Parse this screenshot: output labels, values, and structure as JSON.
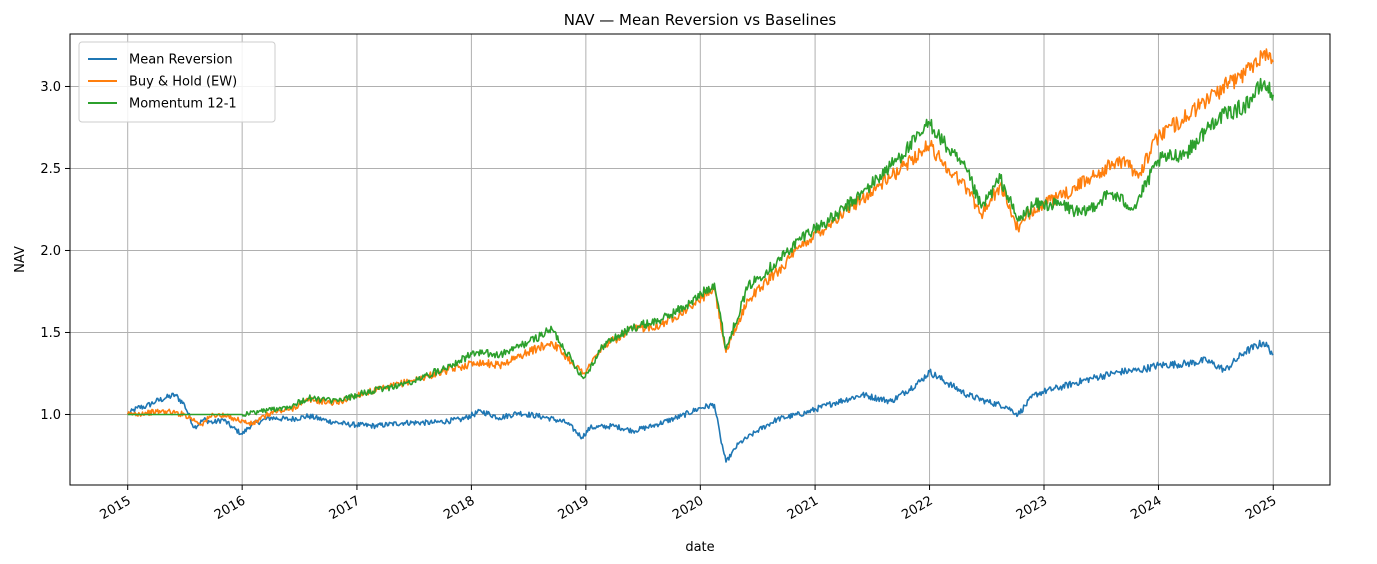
{
  "chart_data": {
    "type": "line",
    "title": "NAV — Mean Reversion vs Baselines",
    "xlabel": "date",
    "ylabel": "NAV",
    "x_ticks": [
      "2015",
      "2016",
      "2017",
      "2018",
      "2019",
      "2020",
      "2021",
      "2022",
      "2023",
      "2024",
      "2025"
    ],
    "y_ticks": [
      "1.0",
      "1.5",
      "2.0",
      "2.5",
      "3.0"
    ],
    "xlim": [
      "2014-07-01",
      "2025-07-01"
    ],
    "ylim": [
      0.57,
      3.32
    ],
    "grid": true,
    "legend_position": "top-left",
    "series": [
      {
        "name": "Mean Reversion",
        "color": "#1f77b4",
        "points": [
          [
            "2015-01-01",
            1.0
          ],
          [
            "2015-02-01",
            1.04
          ],
          [
            "2015-03-01",
            1.05
          ],
          [
            "2015-04-01",
            1.08
          ],
          [
            "2015-05-01",
            1.1
          ],
          [
            "2015-06-01",
            1.12
          ],
          [
            "2015-07-01",
            1.06
          ],
          [
            "2015-08-01",
            0.92
          ],
          [
            "2015-09-01",
            0.97
          ],
          [
            "2015-10-01",
            0.95
          ],
          [
            "2015-11-01",
            0.97
          ],
          [
            "2015-12-01",
            0.92
          ],
          [
            "2016-01-01",
            0.88
          ],
          [
            "2016-02-01",
            0.94
          ],
          [
            "2016-03-01",
            0.96
          ],
          [
            "2016-04-01",
            0.98
          ],
          [
            "2016-06-01",
            0.97
          ],
          [
            "2016-08-01",
            0.99
          ],
          [
            "2016-10-01",
            0.96
          ],
          [
            "2016-12-01",
            0.94
          ],
          [
            "2017-03-01",
            0.93
          ],
          [
            "2017-06-01",
            0.95
          ],
          [
            "2017-09-01",
            0.95
          ],
          [
            "2017-12-01",
            0.97
          ],
          [
            "2018-02-01",
            1.02
          ],
          [
            "2018-04-01",
            0.98
          ],
          [
            "2018-06-01",
            1.01
          ],
          [
            "2018-09-01",
            0.98
          ],
          [
            "2018-11-01",
            0.95
          ],
          [
            "2018-12-20",
            0.86
          ],
          [
            "2019-01-15",
            0.92
          ],
          [
            "2019-04-01",
            0.93
          ],
          [
            "2019-06-01",
            0.9
          ],
          [
            "2019-08-01",
            0.93
          ],
          [
            "2019-11-01",
            0.99
          ],
          [
            "2020-01-01",
            1.04
          ],
          [
            "2020-02-15",
            1.06
          ],
          [
            "2020-03-05",
            0.86
          ],
          [
            "2020-03-23",
            0.71
          ],
          [
            "2020-05-01",
            0.82
          ],
          [
            "2020-07-01",
            0.9
          ],
          [
            "2020-09-01",
            0.97
          ],
          [
            "2020-12-01",
            1.01
          ],
          [
            "2021-03-01",
            1.07
          ],
          [
            "2021-06-01",
            1.12
          ],
          [
            "2021-09-01",
            1.08
          ],
          [
            "2021-12-01",
            1.2
          ],
          [
            "2022-01-01",
            1.26
          ],
          [
            "2022-03-01",
            1.19
          ],
          [
            "2022-05-01",
            1.12
          ],
          [
            "2022-07-01",
            1.08
          ],
          [
            "2022-09-01",
            1.05
          ],
          [
            "2022-10-10",
            1.0
          ],
          [
            "2022-12-01",
            1.12
          ],
          [
            "2023-01-01",
            1.14
          ],
          [
            "2023-03-01",
            1.17
          ],
          [
            "2023-06-01",
            1.22
          ],
          [
            "2023-09-01",
            1.26
          ],
          [
            "2023-11-01",
            1.27
          ],
          [
            "2024-01-01",
            1.3
          ],
          [
            "2024-04-01",
            1.31
          ],
          [
            "2024-06-01",
            1.33
          ],
          [
            "2024-08-01",
            1.27
          ],
          [
            "2024-10-01",
            1.38
          ],
          [
            "2024-12-01",
            1.44
          ],
          [
            "2025-01-01",
            1.37
          ]
        ]
      },
      {
        "name": "Buy & Hold (EW)",
        "color": "#ff7f0e",
        "points": [
          [
            "2015-01-01",
            1.0
          ],
          [
            "2015-03-01",
            1.01
          ],
          [
            "2015-05-01",
            1.02
          ],
          [
            "2015-07-01",
            1.0
          ],
          [
            "2015-08-25",
            0.94
          ],
          [
            "2015-10-01",
            1.0
          ],
          [
            "2015-12-01",
            0.98
          ],
          [
            "2016-02-01",
            0.94
          ],
          [
            "2016-04-01",
            1.01
          ],
          [
            "2016-06-01",
            1.03
          ],
          [
            "2016-08-01",
            1.09
          ],
          [
            "2016-11-01",
            1.07
          ],
          [
            "2017-01-01",
            1.12
          ],
          [
            "2017-04-01",
            1.16
          ],
          [
            "2017-07-01",
            1.21
          ],
          [
            "2017-10-01",
            1.26
          ],
          [
            "2018-01-20",
            1.32
          ],
          [
            "2018-04-01",
            1.3
          ],
          [
            "2018-07-01",
            1.38
          ],
          [
            "2018-09-15",
            1.44
          ],
          [
            "2018-12-24",
            1.25
          ],
          [
            "2019-03-01",
            1.42
          ],
          [
            "2019-06-01",
            1.52
          ],
          [
            "2019-09-01",
            1.55
          ],
          [
            "2019-12-01",
            1.66
          ],
          [
            "2020-02-15",
            1.77
          ],
          [
            "2020-03-23",
            1.38
          ],
          [
            "2020-06-01",
            1.7
          ],
          [
            "2020-09-01",
            1.87
          ],
          [
            "2020-12-01",
            2.05
          ],
          [
            "2021-03-01",
            2.18
          ],
          [
            "2021-06-01",
            2.32
          ],
          [
            "2021-09-01",
            2.45
          ],
          [
            "2021-12-01",
            2.6
          ],
          [
            "2022-01-01",
            2.64
          ],
          [
            "2022-03-01",
            2.5
          ],
          [
            "2022-05-01",
            2.38
          ],
          [
            "2022-06-15",
            2.22
          ],
          [
            "2022-08-15",
            2.4
          ],
          [
            "2022-10-10",
            2.13
          ],
          [
            "2022-12-01",
            2.26
          ],
          [
            "2023-03-01",
            2.33
          ],
          [
            "2023-06-01",
            2.45
          ],
          [
            "2023-09-01",
            2.55
          ],
          [
            "2023-11-01",
            2.47
          ],
          [
            "2024-01-01",
            2.7
          ],
          [
            "2024-04-01",
            2.82
          ],
          [
            "2024-07-01",
            2.96
          ],
          [
            "2024-10-01",
            3.08
          ],
          [
            "2024-12-01",
            3.21
          ],
          [
            "2025-01-01",
            3.15
          ]
        ]
      },
      {
        "name": "Momentum 12-1",
        "color": "#2ca02c",
        "points": [
          [
            "2015-01-01",
            1.0
          ],
          [
            "2016-01-01",
            1.0
          ],
          [
            "2016-03-01",
            1.02
          ],
          [
            "2016-06-01",
            1.05
          ],
          [
            "2016-08-01",
            1.1
          ],
          [
            "2016-11-01",
            1.08
          ],
          [
            "2017-01-01",
            1.12
          ],
          [
            "2017-04-01",
            1.16
          ],
          [
            "2017-07-01",
            1.2
          ],
          [
            "2017-10-01",
            1.28
          ],
          [
            "2018-01-20",
            1.38
          ],
          [
            "2018-04-01",
            1.36
          ],
          [
            "2018-07-01",
            1.44
          ],
          [
            "2018-09-15",
            1.52
          ],
          [
            "2018-12-24",
            1.22
          ],
          [
            "2019-03-01",
            1.43
          ],
          [
            "2019-06-01",
            1.53
          ],
          [
            "2019-09-01",
            1.58
          ],
          [
            "2019-12-01",
            1.68
          ],
          [
            "2020-02-15",
            1.8
          ],
          [
            "2020-03-23",
            1.4
          ],
          [
            "2020-06-01",
            1.78
          ],
          [
            "2020-09-01",
            1.93
          ],
          [
            "2020-12-01",
            2.1
          ],
          [
            "2021-03-01",
            2.2
          ],
          [
            "2021-06-01",
            2.35
          ],
          [
            "2021-09-01",
            2.52
          ],
          [
            "2021-12-01",
            2.7
          ],
          [
            "2022-01-01",
            2.78
          ],
          [
            "2022-03-01",
            2.62
          ],
          [
            "2022-05-01",
            2.48
          ],
          [
            "2022-06-15",
            2.26
          ],
          [
            "2022-08-15",
            2.44
          ],
          [
            "2022-10-10",
            2.18
          ],
          [
            "2022-12-01",
            2.28
          ],
          [
            "2023-03-01",
            2.28
          ],
          [
            "2023-05-01",
            2.22
          ],
          [
            "2023-08-01",
            2.35
          ],
          [
            "2023-10-15",
            2.26
          ],
          [
            "2024-01-01",
            2.55
          ],
          [
            "2024-04-01",
            2.6
          ],
          [
            "2024-07-01",
            2.8
          ],
          [
            "2024-10-01",
            2.88
          ],
          [
            "2024-12-01",
            3.02
          ],
          [
            "2025-01-01",
            2.95
          ]
        ]
      }
    ]
  }
}
